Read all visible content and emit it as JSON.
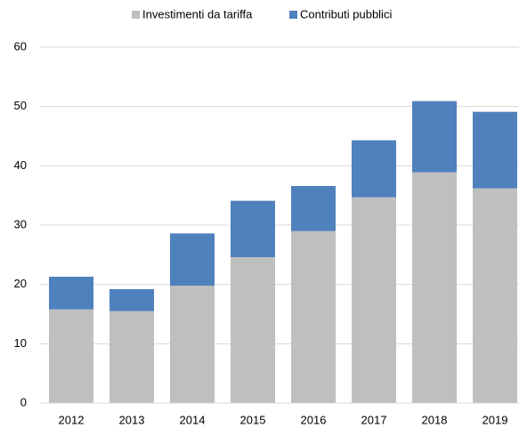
{
  "chart_data": {
    "type": "stacked-bar",
    "categories": [
      "2012",
      "2013",
      "2014",
      "2015",
      "2016",
      "2017",
      "2018",
      "2019"
    ],
    "series": [
      {
        "name": "Investimenti da tariffa",
        "color": "#bfbfbf",
        "values": [
          15.8,
          15.5,
          19.8,
          24.6,
          29.0,
          34.7,
          38.9,
          36.2
        ]
      },
      {
        "name": "Contributi pubblici",
        "color": "#4f81bd",
        "values": [
          5.5,
          3.7,
          8.8,
          9.5,
          7.6,
          9.6,
          12.0,
          12.9
        ]
      }
    ],
    "ylim": [
      0,
      60
    ],
    "yticks": [
      0,
      10,
      20,
      30,
      40,
      50,
      60
    ],
    "grid": true,
    "legend": "top"
  }
}
